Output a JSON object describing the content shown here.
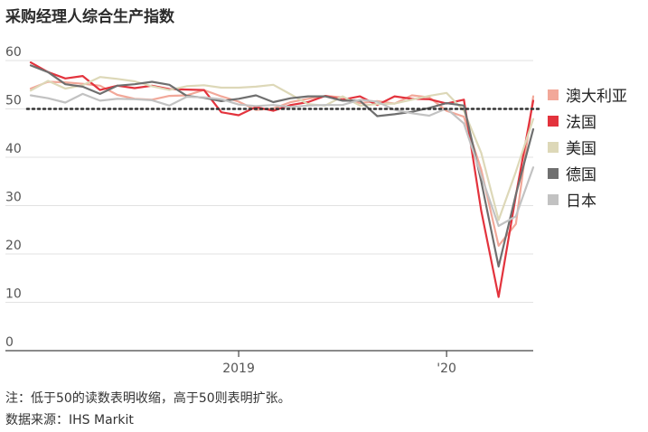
{
  "title": "采购经理人综合生产指数",
  "note": "注：低于50的读数表明收缩，高于50则表明扩张。",
  "source": "数据来源：IHS Markit",
  "chart_data": {
    "type": "line",
    "ylim": [
      0,
      60
    ],
    "yticks": [
      0,
      10,
      20,
      30,
      40,
      50,
      60
    ],
    "x_tick_labels": [
      {
        "label": "2019",
        "index": 12
      },
      {
        "label": "'20",
        "index": 24
      }
    ],
    "x_count": 30,
    "reference_line": 50,
    "grid": true,
    "legend_position": "right",
    "series": [
      {
        "name": "澳大利亚",
        "color": "#f2a899",
        "values": [
          54.2,
          55.6,
          55.5,
          55.2,
          54.8,
          52.9,
          52.1,
          51.9,
          52.7,
          52.8,
          53.9,
          52.6,
          51.5,
          49.8,
          50.1,
          51.4,
          52.1,
          52.7,
          52.4,
          51.2,
          51.6,
          51.1,
          52.8,
          52.4,
          49.6,
          48.4,
          37.4,
          21.7,
          26.2,
          52.6
        ]
      },
      {
        "name": "法国",
        "color": "#e3333d",
        "values": [
          59.6,
          57.6,
          56.3,
          56.8,
          53.9,
          54.8,
          54.3,
          54.8,
          54.1,
          54.0,
          53.9,
          49.3,
          48.7,
          50.4,
          49.6,
          50.8,
          51.4,
          52.7,
          51.9,
          52.6,
          50.8,
          52.6,
          52.1,
          52.0,
          51.1,
          51.9,
          28.9,
          11.1,
          32.1,
          51.7
        ]
      },
      {
        "name": "美国",
        "color": "#ddd8b8",
        "values": [
          53.8,
          55.8,
          54.2,
          54.9,
          56.6,
          56.2,
          55.7,
          54.7,
          53.9,
          54.7,
          54.9,
          54.4,
          54.4,
          54.6,
          55.0,
          53.0,
          51.0,
          50.7,
          52.6,
          50.7,
          51.0,
          51.1,
          51.9,
          52.7,
          53.3,
          49.6,
          40.9,
          27.0,
          37.0,
          47.9
        ]
      },
      {
        "name": "德国",
        "color": "#6f6f6f",
        "values": [
          59.0,
          57.6,
          55.1,
          54.6,
          53.1,
          54.8,
          55.1,
          55.6,
          55.0,
          52.7,
          52.3,
          51.6,
          52.1,
          52.8,
          51.4,
          52.2,
          52.6,
          52.6,
          51.7,
          51.7,
          48.5,
          48.9,
          49.4,
          50.2,
          51.2,
          50.7,
          35.0,
          17.4,
          32.3,
          45.8
        ]
      },
      {
        "name": "日本",
        "color": "#c2c2c2",
        "values": [
          52.8,
          52.2,
          51.3,
          53.1,
          51.7,
          52.1,
          52.0,
          51.8,
          50.7,
          52.5,
          52.4,
          52.0,
          50.9,
          50.6,
          50.8,
          50.4,
          50.7,
          50.8,
          50.8,
          51.9,
          51.5,
          49.8,
          49.1,
          48.6,
          50.1,
          47.0,
          36.2,
          25.8,
          27.8,
          37.9
        ]
      }
    ]
  }
}
